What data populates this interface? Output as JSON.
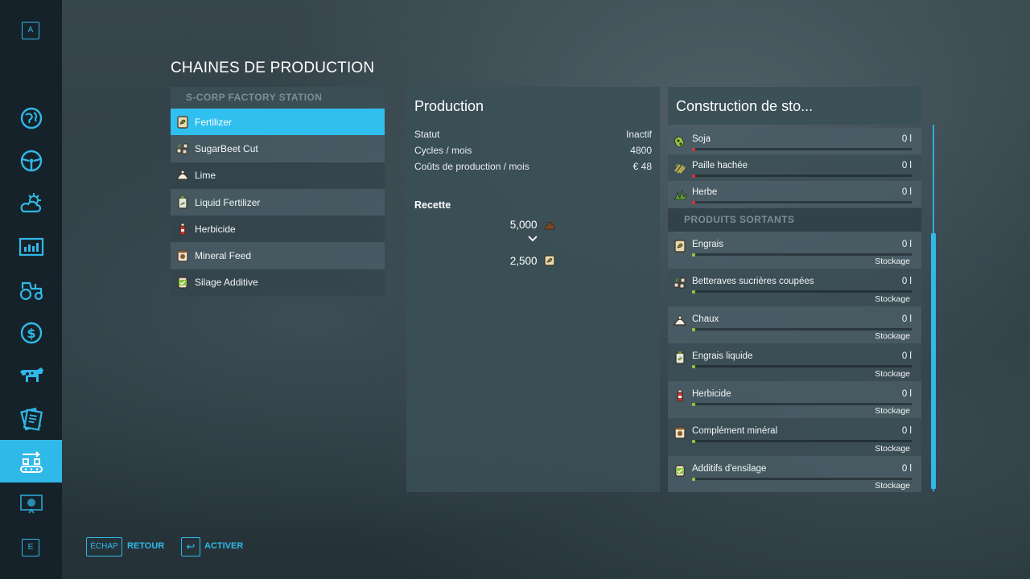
{
  "sidebar": {
    "top_key": "A",
    "bottom_key": "E",
    "items": [
      {
        "icon": "map-icon"
      },
      {
        "icon": "steering-wheel-icon"
      },
      {
        "icon": "weather-icon"
      },
      {
        "icon": "statistics-icon"
      },
      {
        "icon": "tractor-icon"
      },
      {
        "icon": "finance-icon"
      },
      {
        "icon": "animals-icon"
      },
      {
        "icon": "contracts-icon"
      },
      {
        "icon": "production-chain-icon",
        "active": true
      },
      {
        "icon": "help-icon"
      }
    ]
  },
  "page": {
    "title": "CHAINES DE PRODUCTION"
  },
  "chains": {
    "station": "S-CORP FACTORY STATION",
    "items": [
      {
        "label": "Fertilizer",
        "icon": "fertilizer-bag-icon"
      },
      {
        "label": "SugarBeet Cut",
        "icon": "sugarbeet-cut-icon"
      },
      {
        "label": "Lime",
        "icon": "lime-icon"
      },
      {
        "label": "Liquid Fertilizer",
        "icon": "liquid-fertilizer-icon"
      },
      {
        "label": "Herbicide",
        "icon": "herbicide-icon"
      },
      {
        "label": "Mineral Feed",
        "icon": "mineral-feed-icon"
      },
      {
        "label": "Silage Additive",
        "icon": "silage-additive-icon"
      }
    ]
  },
  "production": {
    "title": "Production",
    "stats": [
      {
        "label": "Statut",
        "value": "Inactif"
      },
      {
        "label": "Cycles / mois",
        "value": "4800"
      },
      {
        "label": "Coûts de production / mois",
        "value": "€ 48"
      }
    ],
    "recipe_label": "Recette",
    "input_amount": "5,000",
    "input_icon": "manure-icon",
    "output_amount": "2,500",
    "output_icon": "fertilizer-bag-icon"
  },
  "storage": {
    "title": "Construction de sto...",
    "inputs": [
      {
        "name": "Soja",
        "amount": "0 l",
        "icon": "soybean-icon",
        "fill": 0
      },
      {
        "name": "Paille hachée",
        "amount": "0 l",
        "icon": "chopped-straw-icon",
        "fill": 0
      },
      {
        "name": "Herbe",
        "amount": "0 l",
        "icon": "grass-icon",
        "fill": 0
      }
    ],
    "outputs_header": "PRODUITS SORTANTS",
    "outputs": [
      {
        "name": "Engrais",
        "amount": "0 l",
        "mode": "Stockage",
        "icon": "fertilizer-bag-icon",
        "fill": 0
      },
      {
        "name": "Betteraves sucrières coupées",
        "amount": "0 l",
        "mode": "Stockage",
        "icon": "sugarbeet-cut-icon",
        "fill": 0
      },
      {
        "name": "Chaux",
        "amount": "0 l",
        "mode": "Stockage",
        "icon": "lime-icon",
        "fill": 0
      },
      {
        "name": "Engrais liquide",
        "amount": "0 l",
        "mode": "Stockage",
        "icon": "liquid-fertilizer-icon",
        "fill": 0
      },
      {
        "name": "Herbicide",
        "amount": "0 l",
        "mode": "Stockage",
        "icon": "herbicide-icon",
        "fill": 0
      },
      {
        "name": "Complément minéral",
        "amount": "0 l",
        "mode": "Stockage",
        "icon": "mineral-feed-icon",
        "fill": 0
      },
      {
        "name": "Additifs d'ensilage",
        "amount": "0 l",
        "mode": "Stockage",
        "icon": "silage-additive-icon",
        "fill": 0
      }
    ]
  },
  "footer": {
    "back_key": "ÉCHAP",
    "back_label": "RETOUR",
    "activate_key": "↩",
    "activate_label": "ACTIVER"
  },
  "colors": {
    "accent": "#2fb9e8",
    "input_bar": "#d8323c",
    "output_bar": "#8cc63f"
  }
}
